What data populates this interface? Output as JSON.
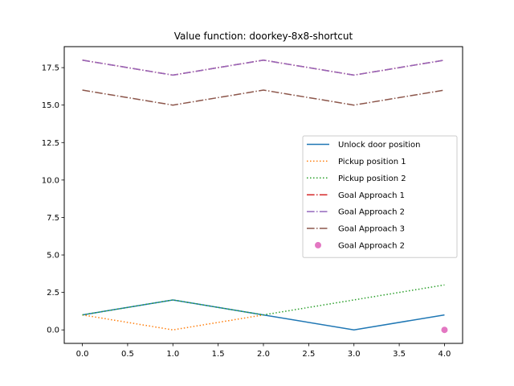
{
  "chart_data": {
    "type": "line",
    "title": "Value function: doorkey-8x8-shortcut",
    "xlabel": "",
    "ylabel": "",
    "xlim": [
      -0.2,
      4.2
    ],
    "ylim": [
      -0.9,
      18.9
    ],
    "xticks": [
      "0.0",
      "0.5",
      "1.0",
      "1.5",
      "2.0",
      "2.5",
      "3.0",
      "3.5",
      "4.0"
    ],
    "yticks": [
      "0.0",
      "2.5",
      "5.0",
      "7.5",
      "10.0",
      "12.5",
      "15.0",
      "17.5"
    ],
    "grid": false,
    "legend_position": "center-right",
    "series": [
      {
        "name": "Unlock door position",
        "x": [
          0,
          1,
          2,
          3,
          4
        ],
        "y": [
          1,
          2,
          1,
          0,
          1
        ],
        "color": "#1f77b4",
        "style": "solid",
        "marker": "none"
      },
      {
        "name": "Pickup position 1",
        "x": [
          0,
          1,
          2
        ],
        "y": [
          1,
          0,
          1
        ],
        "color": "#ff7f0e",
        "style": "dotted",
        "marker": "none"
      },
      {
        "name": "Pickup position 2",
        "x": [
          0,
          1,
          2,
          3,
          4
        ],
        "y": [
          1,
          2,
          1,
          2,
          3
        ],
        "color": "#2ca02c",
        "style": "dotted",
        "marker": "none"
      },
      {
        "name": "Goal Approach 1",
        "x": [
          0,
          1,
          2,
          3,
          4
        ],
        "y": [
          18,
          17,
          18,
          17,
          18
        ],
        "color": "#d62728",
        "style": "dashdot",
        "marker": "none"
      },
      {
        "name": "Goal Approach 2",
        "x": [
          0,
          1,
          2,
          3,
          4
        ],
        "y": [
          18,
          17,
          18,
          17,
          18
        ],
        "color": "#9467bd",
        "style": "dashdot",
        "marker": "none"
      },
      {
        "name": "Goal Approach 3",
        "x": [
          0,
          1,
          2,
          3,
          4
        ],
        "y": [
          16,
          15,
          16,
          15,
          16
        ],
        "color": "#8c564b",
        "style": "dashdot",
        "marker": "none"
      },
      {
        "name": "Goal Approach 2",
        "x": [
          4
        ],
        "y": [
          0
        ],
        "color": "#e377c2",
        "style": "none",
        "marker": "circle"
      }
    ]
  }
}
